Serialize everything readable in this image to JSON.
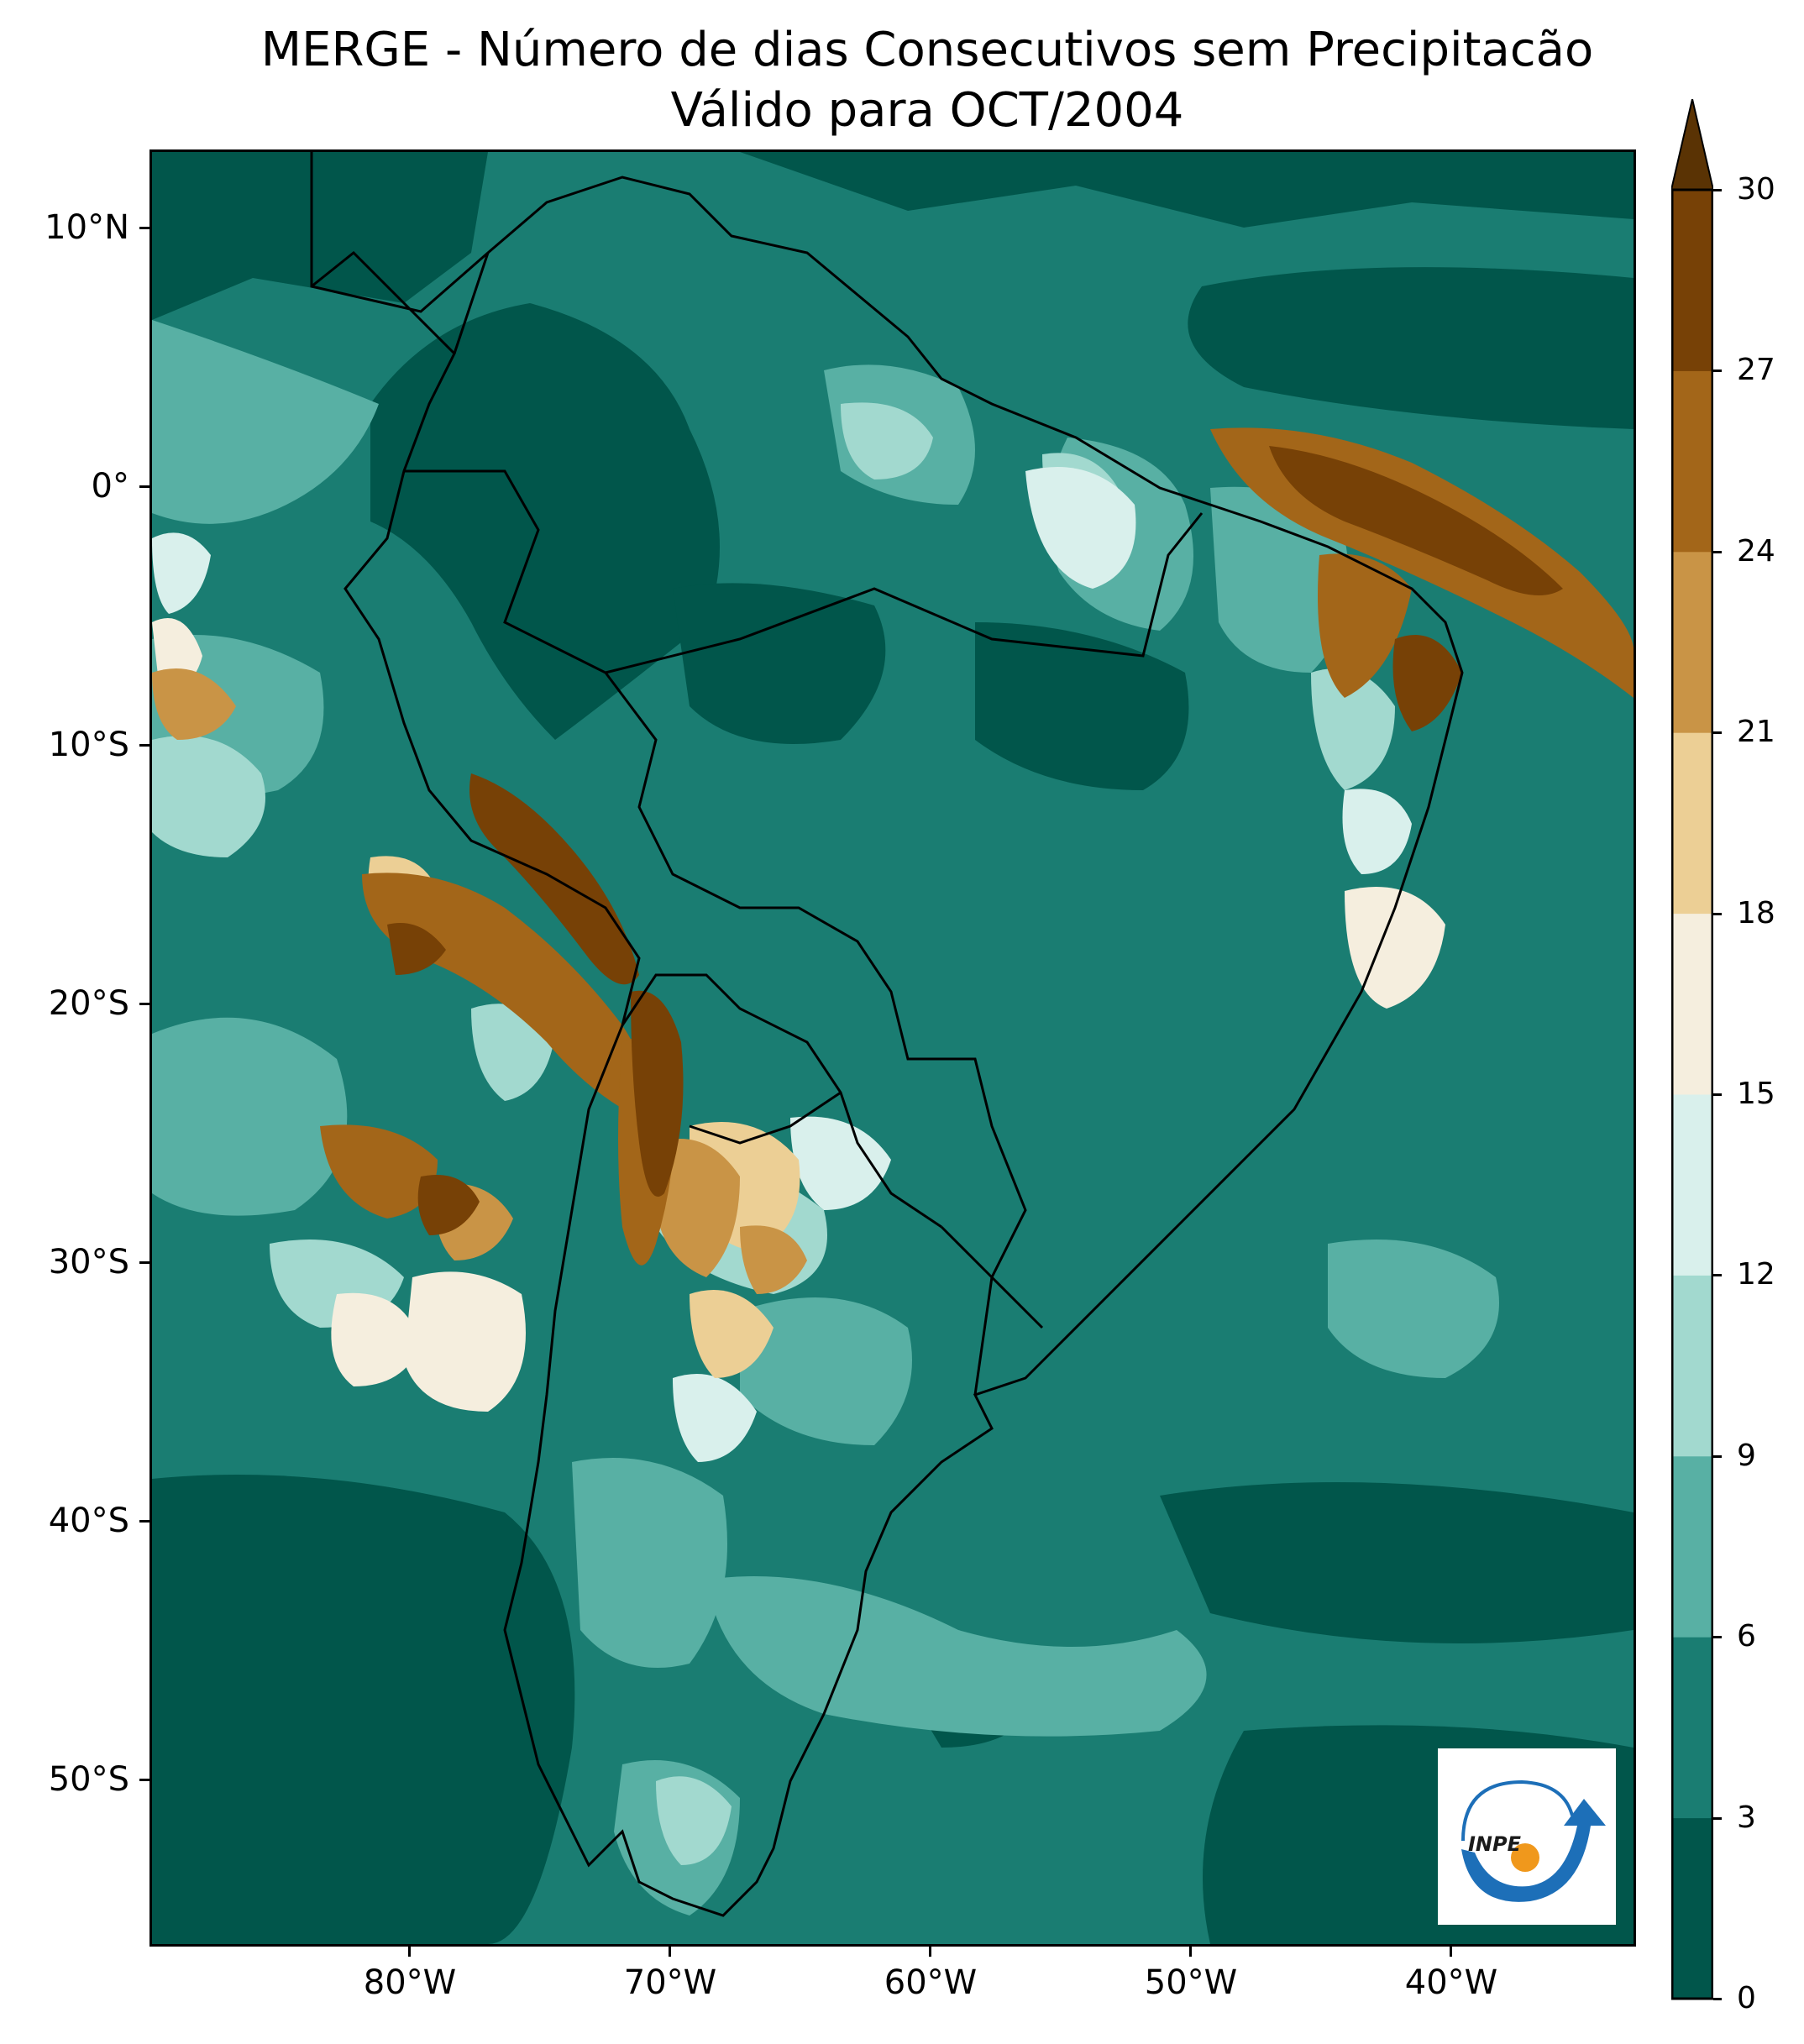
{
  "title": {
    "line1": "MERGE - Número de dias Consecutivos sem Precipitacão",
    "line2": "Válido para OCT/2004"
  },
  "map": {
    "y_axis_labels": [
      "10°N",
      "0°",
      "10°S",
      "20°S",
      "30°S",
      "40°S",
      "50°S"
    ],
    "x_axis_labels": [
      "80°W",
      "70°W",
      "60°W",
      "50°W",
      "40°W"
    ],
    "extent_lon": [
      -89.5,
      -32.5
    ],
    "extent_lat": [
      -57.0,
      12.5
    ]
  },
  "colorbar": {
    "ticks": [
      "0",
      "3",
      "6",
      "9",
      "12",
      "15",
      "18",
      "21",
      "24",
      "27",
      "30"
    ],
    "colors": [
      "#01564b",
      "#1a7d72",
      "#58b0a4",
      "#a2d9cf",
      "#d9f0ec",
      "#f5eede",
      "#eccf95",
      "#c99446",
      "#a36619",
      "#774106",
      "#5a3304"
    ],
    "extend": "max"
  },
  "logo": {
    "text": "INPE",
    "accent_blue": "#1d6fb8",
    "accent_orange": "#f0981c"
  }
}
